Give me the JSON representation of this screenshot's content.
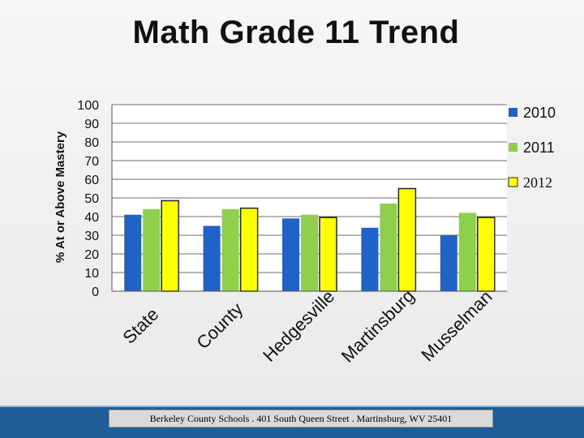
{
  "slide": {
    "footer": "Berkeley County Schools . 401 South Queen Street . Martinsburg, WV  25401"
  },
  "chart_data": {
    "type": "bar",
    "title": "Math Grade 11 Trend",
    "xlabel": "",
    "ylabel": "% At or Above Mastery",
    "ylim": [
      0,
      100
    ],
    "yticks": [
      0,
      10,
      20,
      30,
      40,
      50,
      60,
      70,
      80,
      90,
      100
    ],
    "grid": true,
    "legend_position": "right",
    "categories": [
      "State",
      "County",
      "Hedgesville",
      "Martinsburg",
      "Musselman"
    ],
    "series": [
      {
        "name": "2010",
        "color": "#1f63c6",
        "values": [
          41,
          35,
          39,
          34,
          30
        ]
      },
      {
        "name": "2011",
        "color": "#8ed04b",
        "values": [
          44,
          44,
          41,
          47,
          42
        ]
      },
      {
        "name": "2012",
        "color": "#ffff00",
        "values": [
          48.5,
          44.5,
          39.5,
          55,
          39.5
        ]
      }
    ]
  }
}
